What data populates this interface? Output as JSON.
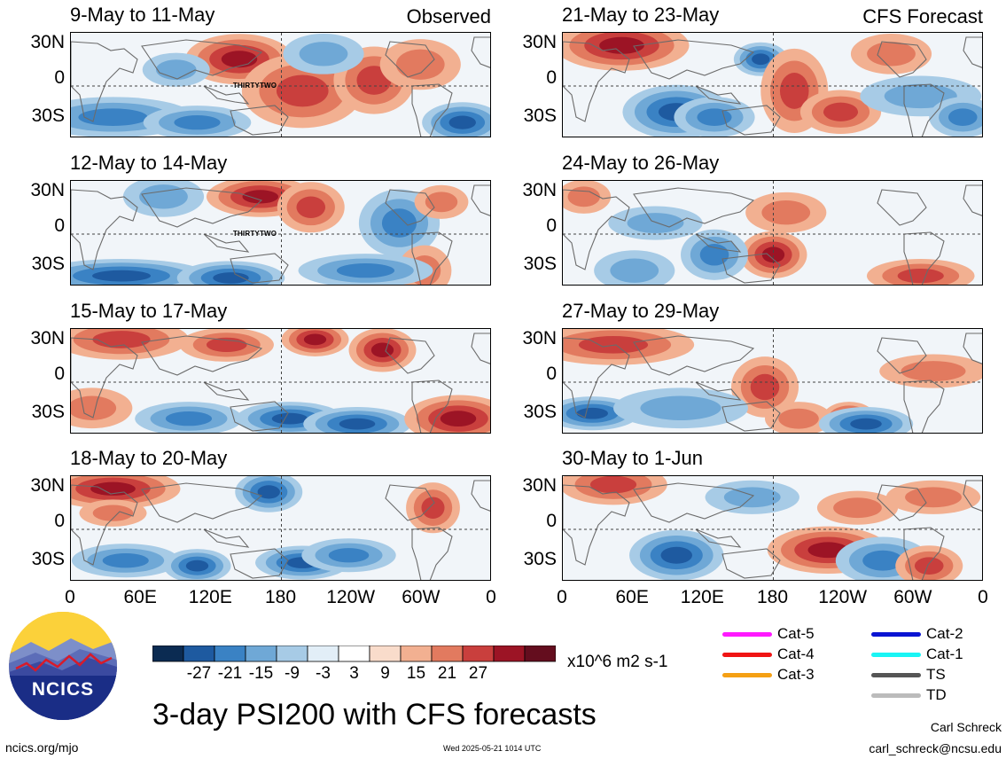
{
  "panels": [
    {
      "title": "9-May to 11-May",
      "tag": "Observed",
      "storm": "THIRTYTWO"
    },
    {
      "title": "21-May to 23-May",
      "tag": "CFS Forecast",
      "storm": ""
    },
    {
      "title": "12-May to 14-May",
      "tag": "",
      "storm": "THIRTYTWO"
    },
    {
      "title": "24-May to 26-May",
      "tag": "",
      "storm": ""
    },
    {
      "title": "15-May to 17-May",
      "tag": "",
      "storm": ""
    },
    {
      "title": "27-May to 29-May",
      "tag": "",
      "storm": ""
    },
    {
      "title": "18-May to 20-May",
      "tag": "",
      "storm": ""
    },
    {
      "title": "30-May to 1-Jun",
      "tag": "",
      "storm": ""
    }
  ],
  "lat_ticks": [
    "30N",
    "0",
    "30S"
  ],
  "lon_ticks": [
    "0",
    "60E",
    "120E",
    "180",
    "120W",
    "60W",
    "0"
  ],
  "colorbar": {
    "labels": [
      "-27",
      "-21",
      "-15",
      "-9",
      "-3",
      "3",
      "9",
      "15",
      "21",
      "27"
    ],
    "colors": [
      "#0b2b52",
      "#1e5aa0",
      "#3a82c4",
      "#6fa8d6",
      "#a7cbe6",
      "#e2eef7",
      "#ffffff",
      "#f9dccb",
      "#f2b091",
      "#e27a5f",
      "#c93f3d",
      "#9c1425",
      "#640d1e"
    ],
    "units": "x10^6 m2 s-1"
  },
  "legend": [
    {
      "label": "Cat-5",
      "color": "#ff19ff"
    },
    {
      "label": "Cat-2",
      "color": "#0a14d2"
    },
    {
      "label": "Cat-4",
      "color": "#f01414"
    },
    {
      "label": "Cat-1",
      "color": "#19f5f5"
    },
    {
      "label": "Cat-3",
      "color": "#f5a014"
    },
    {
      "label": "TS",
      "color": "#555555"
    },
    {
      "label": "TD",
      "color": "#bbbbbb"
    }
  ],
  "main_title": "3-day PSI200 with CFS forecasts",
  "logo_text": "NCICS",
  "footer": {
    "url": "ncics.org/mjo",
    "timestamp": "Wed 2025-05-21 1014 UTC",
    "author": "Carl Schreck",
    "email": "carl_schreck@ncsu.edu"
  },
  "chart_data": {
    "type": "heatmap",
    "variable": "3-day PSI200",
    "units": "x10^6 m2 s-1",
    "x_ticks": [
      "0",
      "60E",
      "120E",
      "180",
      "120W",
      "60W",
      "0"
    ],
    "y_ticks": [
      "30N",
      "0",
      "30S"
    ],
    "levels": [
      -27,
      -21,
      -15,
      -9,
      -3,
      3,
      9,
      15,
      21,
      27
    ],
    "periods": [
      "9-May to 11-May",
      "12-May to 14-May",
      "15-May to 17-May",
      "18-May to 20-May",
      "21-May to 23-May",
      "24-May to 26-May",
      "27-May to 29-May",
      "30-May to 1-Jun"
    ]
  }
}
